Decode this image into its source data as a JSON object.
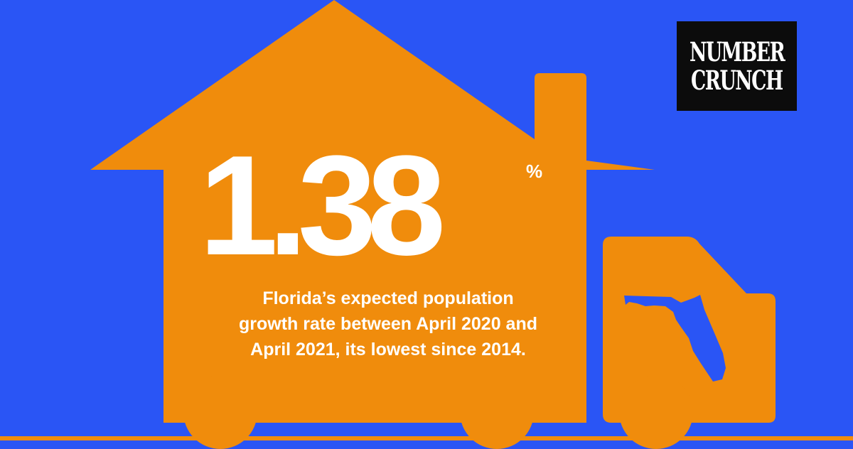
{
  "brand": {
    "line1": "NUMBER",
    "line2": "CRUNCH"
  },
  "stat": {
    "value": "1.38",
    "unit": "%"
  },
  "caption": {
    "line1": "Florida’s expected population",
    "line2": "growth rate between April 2020 and",
    "line3": "April 2021, its lowest since 2014."
  },
  "colors": {
    "background": "#2a55f5",
    "truck": "#f08c0c",
    "florida": "#2a55f5",
    "text": "#ffffff",
    "badge": "#0c0c0c"
  },
  "icons": [
    "house-truck-illustration",
    "florida-map-icon",
    "wheel-icon"
  ]
}
